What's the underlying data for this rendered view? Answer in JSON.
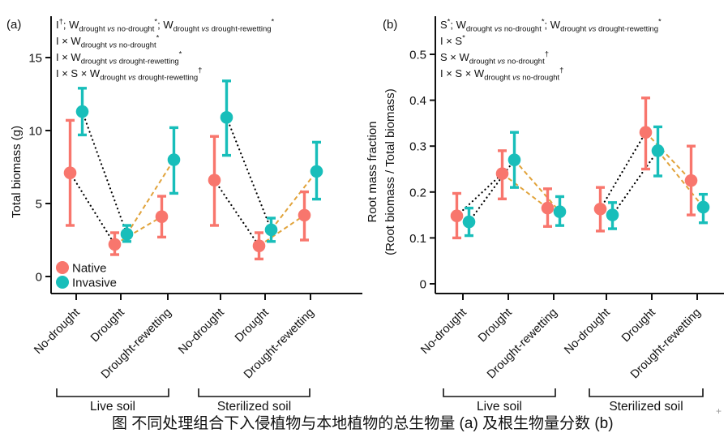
{
  "figure": {
    "caption_partial": "图  不同处理组合下入侵植物与本地植物的总生物量 (a) 及根生物量分数 (b)",
    "corner_mark": "+"
  },
  "colors": {
    "native": "#F8766D",
    "invasive": "#18BEBA",
    "connector_black": "#000000",
    "connector_orange": "#E1A33B",
    "axis": "#111111"
  },
  "chart_data": [
    {
      "type": "scatter",
      "panel_label": "(a)",
      "ylabel_lines": [
        "Total biomass (g)"
      ],
      "ylim": [
        0,
        15
      ],
      "yticks": [
        0,
        5,
        10,
        15
      ],
      "ytick_labels": [
        "0",
        "5",
        "10",
        "15"
      ],
      "grid": false,
      "categories": [
        "No-drought",
        "Drought",
        "Drought-rewetting",
        "No-drought",
        "Drought",
        "Drought-rewetting"
      ],
      "soil_groups": [
        {
          "label": "Live soil",
          "from": 0,
          "to": 2
        },
        {
          "label": "Sterilized soil",
          "from": 3,
          "to": 5
        }
      ],
      "series": [
        {
          "name": "Native",
          "color": "#F8766D",
          "values": [
            7.1,
            2.2,
            4.1,
            6.6,
            2.1,
            4.2
          ],
          "ci_low": [
            3.5,
            1.5,
            2.7,
            3.5,
            1.2,
            2.5
          ],
          "ci_high": [
            10.7,
            3.0,
            5.5,
            9.6,
            3.0,
            5.8
          ]
        },
        {
          "name": "Invasive",
          "color": "#18BEBA",
          "values": [
            11.3,
            2.9,
            8.0,
            10.9,
            3.2,
            7.2
          ],
          "ci_low": [
            9.7,
            2.4,
            5.7,
            8.3,
            2.4,
            5.3
          ],
          "ci_high": [
            12.9,
            3.5,
            10.2,
            13.4,
            4.0,
            9.2
          ]
        }
      ],
      "connectors": [
        {
          "color": "#000000",
          "style": "dotted",
          "segments": [
            [
              0,
              1
            ],
            [
              3,
              4
            ]
          ]
        },
        {
          "color": "#E1A33B",
          "style": "dashed",
          "segments": [
            [
              1,
              2
            ],
            [
              4,
              5
            ]
          ]
        }
      ],
      "legend": {
        "position": "bottom-left-inside",
        "items": [
          {
            "label": "Native",
            "color": "#F8766D"
          },
          {
            "label": "Invasive",
            "color": "#18BEBA"
          }
        ]
      },
      "stats_annotations": [
        [
          {
            "t": "I",
            "s": "n"
          },
          {
            "t": "†",
            "s": "sup"
          },
          {
            "t": ";  W",
            "s": "n"
          },
          {
            "t": "drought ",
            "s": "sub"
          },
          {
            "t": "vs",
            "s": "subi"
          },
          {
            "t": " no-drought",
            "s": "sub"
          },
          {
            "t": "*",
            "s": "sup"
          },
          {
            "t": ";  W",
            "s": "n"
          },
          {
            "t": "drought ",
            "s": "sub"
          },
          {
            "t": "vs",
            "s": "subi"
          },
          {
            "t": " drought-rewetting",
            "s": "sub"
          },
          {
            "t": "*",
            "s": "sup"
          }
        ],
        [
          {
            "t": "I × W",
            "s": "n"
          },
          {
            "t": "drought ",
            "s": "sub"
          },
          {
            "t": "vs",
            "s": "subi"
          },
          {
            "t": " no-drought",
            "s": "sub"
          },
          {
            "t": "*",
            "s": "sup"
          }
        ],
        [
          {
            "t": "I × W",
            "s": "n"
          },
          {
            "t": "drought ",
            "s": "sub"
          },
          {
            "t": "vs",
            "s": "subi"
          },
          {
            "t": " drought-rewetting",
            "s": "sub"
          },
          {
            "t": "*",
            "s": "sup"
          }
        ],
        [
          {
            "t": "I × S × W",
            "s": "n"
          },
          {
            "t": "drought ",
            "s": "sub"
          },
          {
            "t": "vs",
            "s": "subi"
          },
          {
            "t": " drought-rewetting",
            "s": "sub"
          },
          {
            "t": "†",
            "s": "sup"
          }
        ]
      ]
    },
    {
      "type": "scatter",
      "panel_label": "(b)",
      "ylabel_lines": [
        "Root mass fraction",
        "(Root biomass / Total biomass)"
      ],
      "ylim": [
        0,
        0.5
      ],
      "yticks": [
        0,
        0.1,
        0.2,
        0.3,
        0.4,
        0.5
      ],
      "ytick_labels": [
        "0",
        "0.1",
        "0.2",
        "0.3",
        "0.4",
        "0.5"
      ],
      "grid": false,
      "categories": [
        "No-drought",
        "Drought",
        "Drought-rewetting",
        "No-drought",
        "Drought",
        "Drought-rewetting"
      ],
      "soil_groups": [
        {
          "label": "Live soil",
          "from": 0,
          "to": 2
        },
        {
          "label": "Sterilized soil",
          "from": 3,
          "to": 5
        }
      ],
      "series": [
        {
          "name": "Native",
          "color": "#F8766D",
          "values": [
            0.148,
            0.24,
            0.165,
            0.163,
            0.33,
            0.225
          ],
          "ci_low": [
            0.1,
            0.185,
            0.125,
            0.115,
            0.25,
            0.15
          ],
          "ci_high": [
            0.197,
            0.29,
            0.207,
            0.21,
            0.405,
            0.3
          ]
        },
        {
          "name": "Invasive",
          "color": "#18BEBA",
          "values": [
            0.135,
            0.27,
            0.157,
            0.15,
            0.29,
            0.167
          ],
          "ci_low": [
            0.105,
            0.21,
            0.127,
            0.12,
            0.235,
            0.133
          ],
          "ci_high": [
            0.165,
            0.33,
            0.19,
            0.177,
            0.342,
            0.195
          ]
        }
      ],
      "connectors": [
        {
          "color": "#000000",
          "style": "dotted",
          "segments": [
            [
              0,
              1
            ],
            [
              3,
              4
            ]
          ]
        },
        {
          "color": "#E1A33B",
          "style": "dashed",
          "segments": [
            [
              1,
              2
            ],
            [
              4,
              5
            ]
          ]
        }
      ],
      "legend": null,
      "stats_annotations": [
        [
          {
            "t": "S",
            "s": "n"
          },
          {
            "t": "*",
            "s": "sup"
          },
          {
            "t": ";  W",
            "s": "n"
          },
          {
            "t": "drought ",
            "s": "sub"
          },
          {
            "t": "vs",
            "s": "subi"
          },
          {
            "t": " no-drought",
            "s": "sub"
          },
          {
            "t": "*",
            "s": "sup"
          },
          {
            "t": ";  W",
            "s": "n"
          },
          {
            "t": "drought ",
            "s": "sub"
          },
          {
            "t": "vs",
            "s": "subi"
          },
          {
            "t": " drought-rewetting",
            "s": "sub"
          },
          {
            "t": "*",
            "s": "sup"
          }
        ],
        [
          {
            "t": "I × S",
            "s": "n"
          },
          {
            "t": "*",
            "s": "sup"
          }
        ],
        [
          {
            "t": "S × W",
            "s": "n"
          },
          {
            "t": "drought ",
            "s": "sub"
          },
          {
            "t": "vs",
            "s": "subi"
          },
          {
            "t": " no-drought",
            "s": "sub"
          },
          {
            "t": "†",
            "s": "sup"
          }
        ],
        [
          {
            "t": "I × S × W",
            "s": "n"
          },
          {
            "t": "drought ",
            "s": "sub"
          },
          {
            "t": "vs",
            "s": "subi"
          },
          {
            "t": " no-drought",
            "s": "sub"
          },
          {
            "t": "†",
            "s": "sup"
          }
        ]
      ]
    }
  ]
}
